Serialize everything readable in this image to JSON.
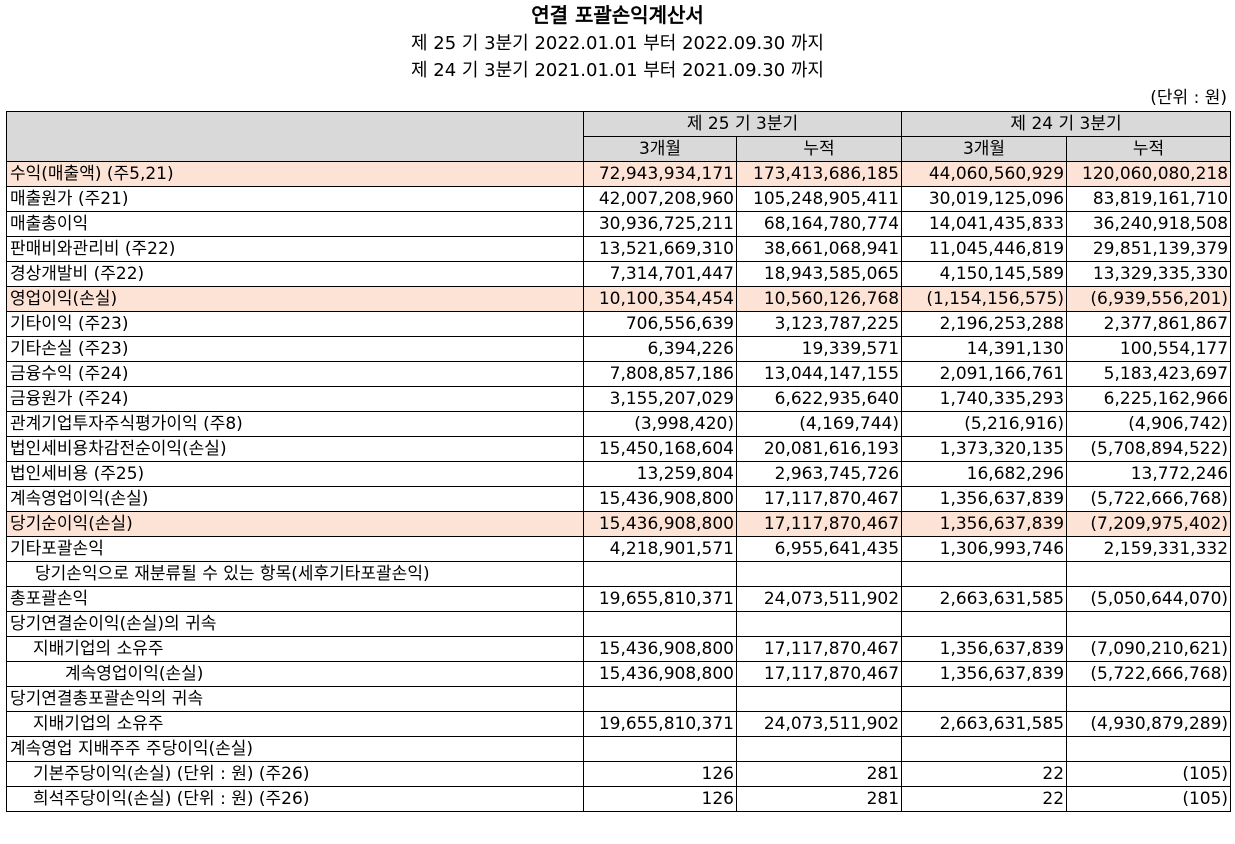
{
  "header": {
    "title": "연결 포괄손익계산서",
    "period1": "제 25 기 3분기 2022.01.01 부터 2022.09.30 까지",
    "period2": "제 24 기 3분기 2021.01.01 부터 2021.09.30 까지",
    "unit": "(단위 : 원)"
  },
  "columns": {
    "period25": "제 25 기 3분기",
    "period24": "제 24 기 3분기",
    "three_month": "3개월",
    "cumulative": "누적"
  },
  "colors": {
    "header_bg": "#d9d9d9",
    "highlight_bg": "#fde3d6"
  },
  "rows": [
    {
      "label": "수익(매출액) (주5,21)",
      "v": [
        "72,943,934,171",
        "173,413,686,185",
        "44,060,560,929",
        "120,060,080,218"
      ]
    },
    {
      "label": "매출원가 (주21)",
      "v": [
        "42,007,208,960",
        "105,248,905,411",
        "30,019,125,096",
        "83,819,161,710"
      ]
    },
    {
      "label": "매출총이익",
      "v": [
        "30,936,725,211",
        "68,164,780,774",
        "14,041,435,833",
        "36,240,918,508"
      ]
    },
    {
      "label": "판매비와관리비 (주22)",
      "v": [
        "13,521,669,310",
        "38,661,068,941",
        "11,045,446,819",
        "29,851,139,379"
      ]
    },
    {
      "label": "경상개발비 (주22)",
      "v": [
        "7,314,701,447",
        "18,943,585,065",
        "4,150,145,589",
        "13,329,335,330"
      ]
    },
    {
      "label": "영업이익(손실)",
      "v": [
        "10,100,354,454",
        "10,560,126,768",
        "(1,154,156,575)",
        "(6,939,556,201)"
      ]
    },
    {
      "label": "기타이익 (주23)",
      "v": [
        "706,556,639",
        "3,123,787,225",
        "2,196,253,288",
        "2,377,861,867"
      ]
    },
    {
      "label": "기타손실 (주23)",
      "v": [
        "6,394,226",
        "19,339,571",
        "14,391,130",
        "100,554,177"
      ]
    },
    {
      "label": "금융수익 (주24)",
      "v": [
        "7,808,857,186",
        "13,044,147,155",
        "2,091,166,761",
        "5,183,423,697"
      ]
    },
    {
      "label": "금융원가 (주24)",
      "v": [
        "3,155,207,029",
        "6,622,935,640",
        "1,740,335,293",
        "6,225,162,966"
      ]
    },
    {
      "label": "관계기업투자주식평가이익 (주8)",
      "v": [
        "(3,998,420)",
        "(4,169,744)",
        "(5,216,916)",
        "(4,906,742)"
      ]
    },
    {
      "label": "법인세비용차감전순이익(손실)",
      "v": [
        "15,450,168,604",
        "20,081,616,193",
        "1,373,320,135",
        "(5,708,894,522)"
      ]
    },
    {
      "label": "법인세비용 (주25)",
      "v": [
        "13,259,804",
        "2,963,745,726",
        "16,682,296",
        "13,772,246"
      ]
    },
    {
      "label": "계속영업이익(손실)",
      "v": [
        "15,436,908,800",
        "17,117,870,467",
        "1,356,637,839",
        "(5,722,666,768)"
      ]
    },
    {
      "label": "당기순이익(손실)",
      "v": [
        "15,436,908,800",
        "17,117,870,467",
        "1,356,637,839",
        "(7,209,975,402)"
      ]
    },
    {
      "label": "기타포괄손익",
      "v": [
        "4,218,901,571",
        "6,955,641,435",
        "1,306,993,746",
        "2,159,331,332"
      ]
    },
    {
      "label": "당기손익으로 재분류될 수 있는 항목(세후기타포괄손익)",
      "v": [
        "",
        "",
        "",
        ""
      ]
    },
    {
      "label": "총포괄손익",
      "v": [
        "19,655,810,371",
        "24,073,511,902",
        "2,663,631,585",
        "(5,050,644,070)"
      ]
    },
    {
      "label": "당기연결순이익(손실)의 귀속",
      "v": [
        "",
        "",
        "",
        ""
      ]
    },
    {
      "label": "지배기업의 소유주",
      "v": [
        "15,436,908,800",
        "17,117,870,467",
        "1,356,637,839",
        "(7,090,210,621)"
      ]
    },
    {
      "label": "계속영업이익(손실)",
      "v": [
        "15,436,908,800",
        "17,117,870,467",
        "1,356,637,839",
        "(5,722,666,768)"
      ]
    },
    {
      "label": "당기연결총포괄손익의 귀속",
      "v": [
        "",
        "",
        "",
        ""
      ]
    },
    {
      "label": "지배기업의 소유주",
      "v": [
        "19,655,810,371",
        "24,073,511,902",
        "2,663,631,585",
        "(4,930,879,289)"
      ]
    },
    {
      "label": "계속영업 지배주주 주당이익(손실)",
      "v": [
        "",
        "",
        "",
        ""
      ]
    },
    {
      "label": "기본주당이익(손실) (단위 : 원) (주26)",
      "v": [
        "126",
        "281",
        "22",
        "(105)"
      ]
    },
    {
      "label": "희석주당이익(손실) (단위 : 원) (주26)",
      "v": [
        "126",
        "281",
        "22",
        "(105)"
      ]
    }
  ]
}
